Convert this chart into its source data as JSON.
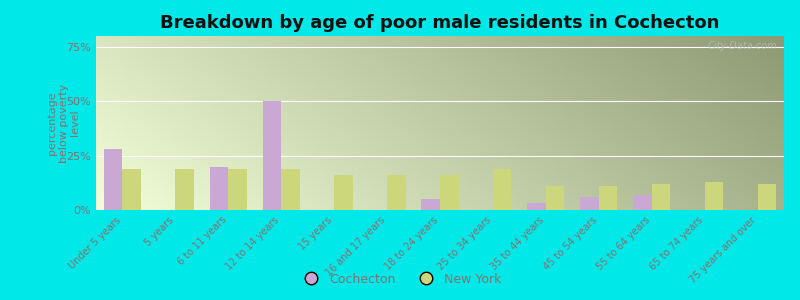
{
  "title": "Breakdown by age of poor male residents in Cochecton",
  "categories": [
    "Under 5 years",
    "5 years",
    "6 to 11 years",
    "12 to 14 years",
    "15 years",
    "16 and 17 years",
    "18 to 24 years",
    "25 to 34 years",
    "35 to 44 years",
    "45 to 54 years",
    "55 to 64 years",
    "65 to 74 years",
    "75 years and over"
  ],
  "cochecton": [
    28,
    0,
    20,
    50,
    0,
    0,
    5,
    0,
    3,
    6,
    7,
    0,
    0
  ],
  "new_york": [
    19,
    19,
    19,
    19,
    16,
    16,
    16,
    19,
    11,
    11,
    12,
    13,
    12
  ],
  "cochecton_color": "#c9a8d4",
  "new_york_color": "#ccd67a",
  "fig_bg": "#00e8e8",
  "plot_bg_left": "#d6edc0",
  "plot_bg_right": "#f0f8e8",
  "ylabel": "percentage\nbelow poverty\nlevel",
  "ylim": [
    0,
    80
  ],
  "yticks": [
    0,
    25,
    50,
    75
  ],
  "ytick_labels": [
    "0%",
    "25%",
    "50%",
    "75%"
  ],
  "title_fontsize": 13,
  "tick_color": "#8a7070",
  "label_color": "#8a7070",
  "watermark": "City-Data.com"
}
